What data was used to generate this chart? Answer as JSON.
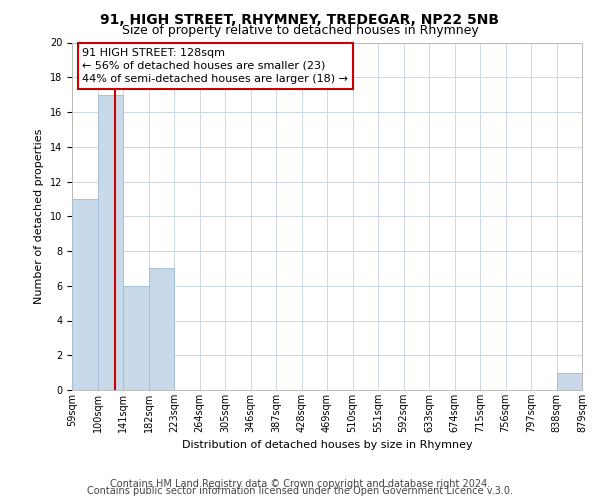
{
  "title": "91, HIGH STREET, RHYMNEY, TREDEGAR, NP22 5NB",
  "subtitle": "Size of property relative to detached houses in Rhymney",
  "xlabel": "Distribution of detached houses by size in Rhymney",
  "ylabel": "Number of detached properties",
  "bin_labels": [
    "59sqm",
    "100sqm",
    "141sqm",
    "182sqm",
    "223sqm",
    "264sqm",
    "305sqm",
    "346sqm",
    "387sqm",
    "428sqm",
    "469sqm",
    "510sqm",
    "551sqm",
    "592sqm",
    "633sqm",
    "674sqm",
    "715sqm",
    "756sqm",
    "797sqm",
    "838sqm",
    "879sqm"
  ],
  "bin_edges": [
    59,
    100,
    141,
    182,
    223,
    264,
    305,
    346,
    387,
    428,
    469,
    510,
    551,
    592,
    633,
    674,
    715,
    756,
    797,
    838,
    879
  ],
  "bar_heights": [
    11,
    17,
    6,
    7,
    0,
    0,
    0,
    0,
    0,
    0,
    0,
    0,
    0,
    0,
    0,
    0,
    0,
    0,
    0,
    1,
    0
  ],
  "bar_color": "#c8daea",
  "bar_edge_color": "#9bbdd4",
  "property_size": 128,
  "red_line_color": "#cc0000",
  "annotation_line1": "91 HIGH STREET: 128sqm",
  "annotation_line2": "← 56% of detached houses are smaller (23)",
  "annotation_line3": "44% of semi-detached houses are larger (18) →",
  "annotation_box_color": "#ffffff",
  "annotation_box_edge": "#cc0000",
  "ylim": [
    0,
    20
  ],
  "yticks": [
    0,
    2,
    4,
    6,
    8,
    10,
    12,
    14,
    16,
    18,
    20
  ],
  "footer_line1": "Contains HM Land Registry data © Crown copyright and database right 2024.",
  "footer_line2": "Contains public sector information licensed under the Open Government Licence v.3.0.",
  "grid_color": "#ccd6e8",
  "background_color": "#ffffff",
  "title_fontsize": 10,
  "subtitle_fontsize": 9,
  "axis_label_fontsize": 8,
  "tick_fontsize": 7,
  "annotation_fontsize": 8,
  "footer_fontsize": 7
}
